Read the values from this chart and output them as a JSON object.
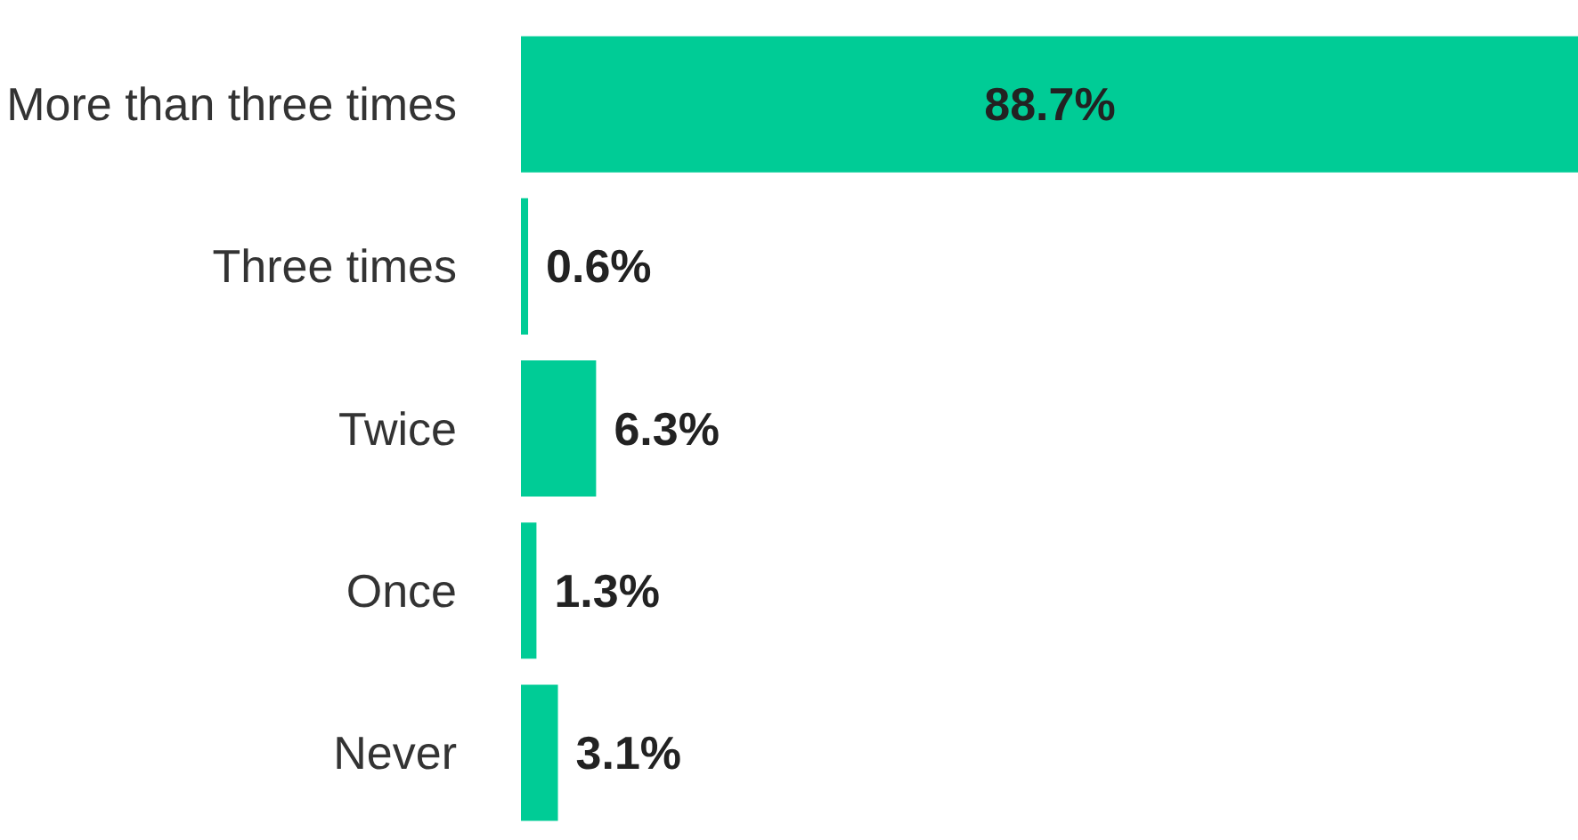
{
  "chart_data": {
    "type": "bar",
    "orientation": "horizontal",
    "categories": [
      "More than three times",
      "Three times",
      "Twice",
      "Once",
      "Never"
    ],
    "values": [
      88.7,
      0.6,
      6.3,
      1.3,
      3.1
    ],
    "value_labels": [
      "88.7%",
      "0.6%",
      "6.3%",
      "1.3%",
      "3.1%"
    ],
    "color": "#00cc96",
    "grid": false
  }
}
